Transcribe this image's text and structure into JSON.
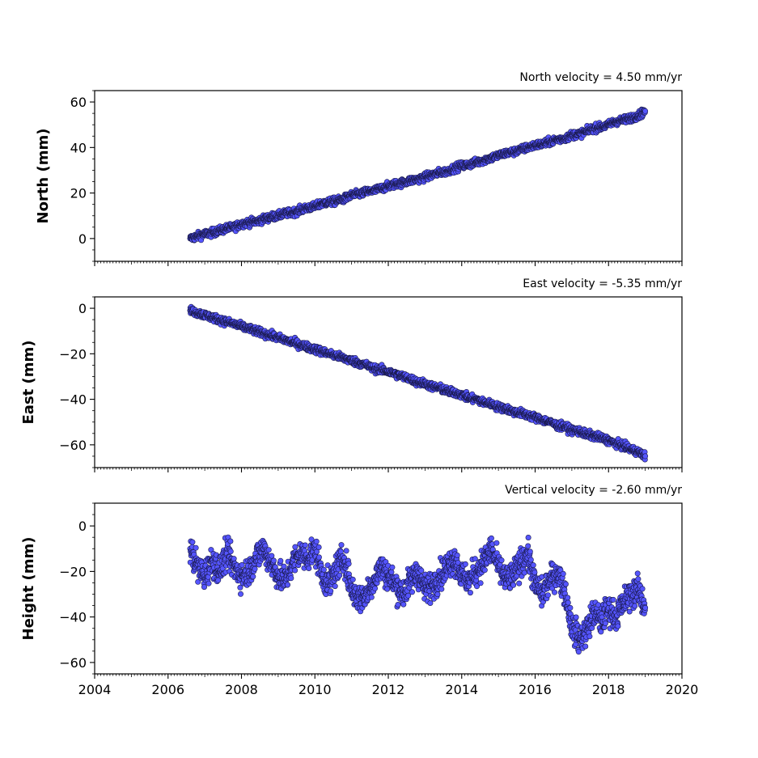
{
  "chart_data": [
    {
      "type": "scatter",
      "title": "North velocity = 4.50 mm/yr",
      "ylabel": "North (mm)",
      "xlabel": "",
      "xlim": [
        2004,
        2020
      ],
      "ylim": [
        -10,
        65
      ],
      "yticks": [
        0,
        20,
        40,
        60
      ],
      "xticks": [
        2004,
        2006,
        2008,
        2010,
        2012,
        2014,
        2016,
        2018,
        2020
      ],
      "show_xtick_labels": false,
      "marker_color": "#5555ff",
      "edge_color": "#1a1a4d",
      "grid": false,
      "series": [
        {
          "x": [
            2006.6,
            2006.8,
            2007.0,
            2007.2,
            2007.4,
            2007.6,
            2007.8,
            2008.0,
            2008.2,
            2008.4,
            2008.6,
            2008.8,
            2009.0,
            2009.2,
            2009.4,
            2009.6,
            2009.8,
            2010.0,
            2010.2,
            2010.4,
            2010.6,
            2010.8,
            2011.0,
            2011.2,
            2011.4,
            2011.6,
            2011.8,
            2012.0,
            2012.2,
            2012.4,
            2012.6,
            2012.8,
            2013.0,
            2013.2,
            2013.4,
            2013.6,
            2013.8,
            2014.0,
            2014.2,
            2014.4,
            2014.6,
            2014.8,
            2015.0,
            2015.2,
            2015.4,
            2015.6,
            2015.8,
            2016.0,
            2016.2,
            2016.4,
            2016.6,
            2016.8,
            2017.0,
            2017.2,
            2017.4,
            2017.6,
            2017.8,
            2018.0,
            2018.2,
            2018.4,
            2018.6,
            2018.8,
            2019.0
          ],
          "y": [
            0.0,
            1.0,
            2.0,
            2.5,
            3.5,
            4.5,
            5.0,
            6.5,
            7.0,
            7.5,
            8.5,
            9.5,
            10.0,
            11.0,
            11.5,
            12.5,
            13.5,
            14.0,
            15.5,
            16.0,
            16.5,
            17.5,
            19.0,
            19.5,
            20.5,
            21.0,
            22.0,
            23.0,
            24.0,
            24.5,
            25.5,
            26.0,
            27.0,
            28.0,
            29.0,
            29.5,
            31.0,
            32.0,
            32.5,
            33.5,
            34.5,
            35.5,
            36.5,
            37.5,
            38.0,
            39.0,
            40.0,
            41.0,
            41.5,
            42.5,
            43.5,
            44.0,
            45.5,
            46.0,
            47.0,
            48.5,
            49.0,
            50.0,
            51.5,
            52.0,
            53.0,
            54.0,
            56.0
          ]
        }
      ]
    },
    {
      "type": "scatter",
      "title": "East velocity = -5.35 mm/yr",
      "ylabel": "East (mm)",
      "xlabel": "",
      "xlim": [
        2004,
        2020
      ],
      "ylim": [
        -70,
        5
      ],
      "yticks": [
        0,
        -20,
        -40,
        -60
      ],
      "xticks": [
        2004,
        2006,
        2008,
        2010,
        2012,
        2014,
        2016,
        2018,
        2020
      ],
      "show_xtick_labels": false,
      "marker_color": "#5555ff",
      "edge_color": "#1a1a4d",
      "grid": false,
      "series": [
        {
          "x": [
            2006.6,
            2006.8,
            2007.0,
            2007.2,
            2007.4,
            2007.6,
            2007.8,
            2008.0,
            2008.2,
            2008.4,
            2008.6,
            2008.8,
            2009.0,
            2009.2,
            2009.4,
            2009.6,
            2009.8,
            2010.0,
            2010.2,
            2010.4,
            2010.6,
            2010.8,
            2011.0,
            2011.2,
            2011.4,
            2011.6,
            2011.8,
            2012.0,
            2012.2,
            2012.4,
            2012.6,
            2012.8,
            2013.0,
            2013.2,
            2013.4,
            2013.6,
            2013.8,
            2014.0,
            2014.2,
            2014.4,
            2014.6,
            2014.8,
            2015.0,
            2015.2,
            2015.4,
            2015.6,
            2015.8,
            2016.0,
            2016.2,
            2016.4,
            2016.6,
            2016.8,
            2017.0,
            2017.2,
            2017.4,
            2017.6,
            2017.8,
            2018.0,
            2018.2,
            2018.4,
            2018.6,
            2018.8,
            2019.0
          ],
          "y": [
            -1.0,
            -2.0,
            -3.0,
            -4.0,
            -5.0,
            -6.0,
            -7.0,
            -8.0,
            -9.0,
            -10.0,
            -11.0,
            -12.0,
            -13.0,
            -14.0,
            -15.0,
            -16.0,
            -17.0,
            -18.0,
            -19.0,
            -20.0,
            -21.0,
            -22.0,
            -23.0,
            -24.0,
            -25.0,
            -26.5,
            -27.0,
            -28.0,
            -29.0,
            -30.0,
            -31.0,
            -32.5,
            -33.0,
            -34.5,
            -35.0,
            -36.5,
            -37.0,
            -38.0,
            -39.5,
            -40.0,
            -41.5,
            -42.0,
            -43.5,
            -44.0,
            -45.5,
            -46.0,
            -47.0,
            -48.0,
            -49.0,
            -50.0,
            -51.5,
            -52.0,
            -53.5,
            -54.0,
            -55.5,
            -56.0,
            -57.0,
            -58.0,
            -59.5,
            -60.5,
            -62.0,
            -63.0,
            -65.0
          ]
        }
      ]
    },
    {
      "type": "scatter",
      "title": "Vertical velocity = -2.60 mm/yr",
      "ylabel": "Height (mm)",
      "xlabel": "",
      "xlim": [
        2004,
        2020
      ],
      "ylim": [
        -65,
        10
      ],
      "yticks": [
        0,
        -20,
        -40,
        -60
      ],
      "xticks": [
        2004,
        2006,
        2008,
        2010,
        2012,
        2014,
        2016,
        2018,
        2020
      ],
      "show_xtick_labels": true,
      "marker_color": "#5555ff",
      "edge_color": "#1a1a4d",
      "grid": false,
      "series": [
        {
          "x": [
            2006.6,
            2006.8,
            2007.0,
            2007.2,
            2007.4,
            2007.6,
            2007.8,
            2008.0,
            2008.2,
            2008.4,
            2008.6,
            2008.8,
            2009.0,
            2009.2,
            2009.4,
            2009.6,
            2009.8,
            2010.0,
            2010.2,
            2010.4,
            2010.6,
            2010.8,
            2011.0,
            2011.2,
            2011.4,
            2011.6,
            2011.8,
            2012.0,
            2012.2,
            2012.4,
            2012.6,
            2012.8,
            2013.0,
            2013.2,
            2013.4,
            2013.6,
            2013.8,
            2014.0,
            2014.2,
            2014.4,
            2014.6,
            2014.8,
            2015.0,
            2015.2,
            2015.4,
            2015.6,
            2015.8,
            2016.0,
            2016.2,
            2016.4,
            2016.6,
            2016.8,
            2017.0,
            2017.2,
            2017.4,
            2017.6,
            2017.8,
            2018.0,
            2018.2,
            2018.4,
            2018.6,
            2018.8,
            2019.0
          ],
          "y": [
            -10,
            -18,
            -22,
            -15,
            -20,
            -12,
            -18,
            -22,
            -20,
            -14,
            -10,
            -16,
            -22,
            -24,
            -16,
            -12,
            -14,
            -10,
            -22,
            -26,
            -18,
            -14,
            -28,
            -32,
            -30,
            -24,
            -18,
            -22,
            -26,
            -30,
            -24,
            -20,
            -28,
            -26,
            -22,
            -18,
            -14,
            -22,
            -24,
            -20,
            -16,
            -10,
            -18,
            -24,
            -22,
            -16,
            -12,
            -26,
            -30,
            -24,
            -20,
            -28,
            -44,
            -50,
            -46,
            -38,
            -42,
            -36,
            -40,
            -34,
            -30,
            -28,
            -36
          ]
        }
      ]
    }
  ]
}
